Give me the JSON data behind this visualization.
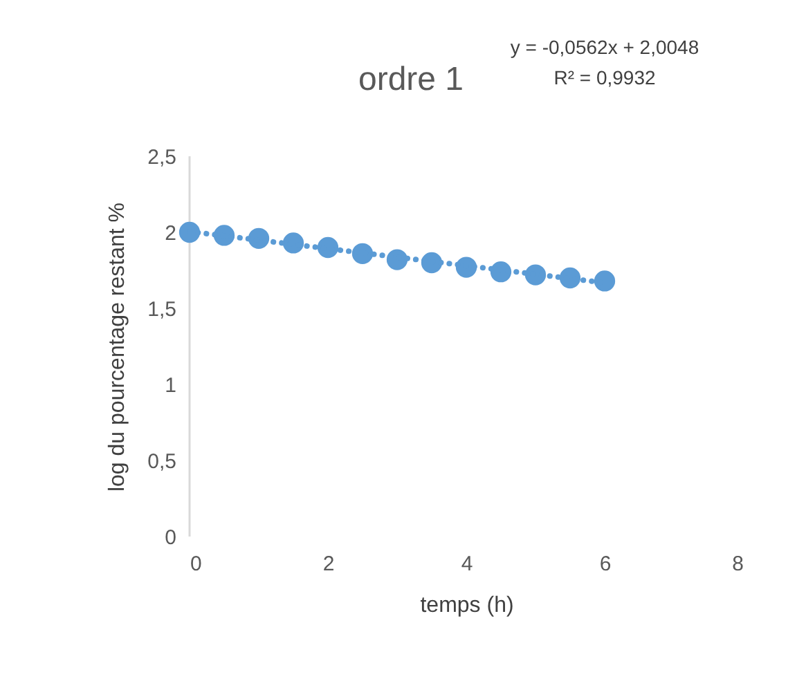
{
  "chart_data": {
    "type": "scatter",
    "title": "ordre 1",
    "xlabel": "temps (h)",
    "ylabel": "log du  pourcentage restant %",
    "annotations": [
      "y = -0,0562x + 2,0048",
      "R² = 0,9932"
    ],
    "x": [
      0,
      0.5,
      1,
      1.5,
      2,
      2.5,
      3,
      3.5,
      4,
      4.5,
      5,
      5.5,
      6
    ],
    "series": [
      {
        "color": "#5b9bd5",
        "marker": "circle",
        "values": [
          2.0,
          1.98,
          1.96,
          1.93,
          1.9,
          1.86,
          1.82,
          1.8,
          1.77,
          1.74,
          1.72,
          1.7,
          1.68
        ]
      },
      {
        "type": "line",
        "color": "#5b9bd5",
        "line_style": "dotted",
        "marker": "none",
        "x": [
          0,
          6
        ],
        "values": [
          2.005,
          1.668
        ]
      }
    ],
    "xlim": [
      0,
      8
    ],
    "xticks": [
      0,
      2,
      4,
      6,
      8
    ],
    "ylim": [
      0,
      2.5
    ],
    "yticks": [
      0,
      {
        "value": 0.5,
        "label": "0,5"
      },
      1,
      {
        "value": 1.5,
        "label": "1,5"
      },
      2,
      {
        "value": 2.5,
        "label": "2,5"
      }
    ],
    "grid": false
  }
}
